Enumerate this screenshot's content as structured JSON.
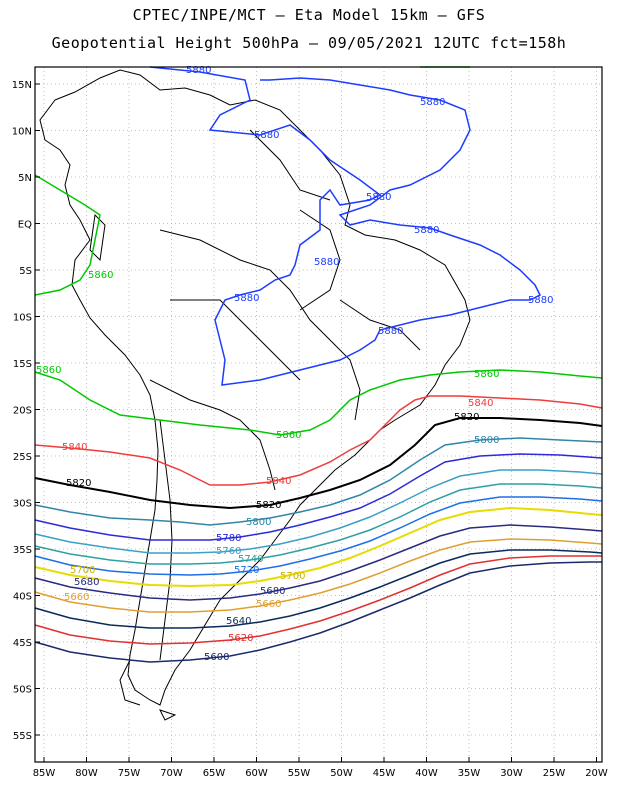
{
  "header": {
    "line1": "CPTEC/INPE/MCT –  Eta Model 15km – GFS",
    "line2": "Geopotential Height 500hPa – 09/05/2021 12UTC fct=158h"
  },
  "axes": {
    "lat_labels": [
      "15N",
      "10N",
      "5N",
      "EQ",
      "5S",
      "10S",
      "15S",
      "20S",
      "25S",
      "30S",
      "35S",
      "40S",
      "45S",
      "50S",
      "55S"
    ],
    "lon_labels": [
      "85W",
      "80W",
      "75W",
      "70W",
      "65W",
      "60W",
      "55W",
      "50W",
      "45W",
      "40W",
      "35W",
      "30W",
      "25W",
      "20W"
    ]
  },
  "colors": {
    "c5880": "#1e3cff",
    "c5860": "#00c800",
    "c5840": "#f03c3c",
    "c5820": "#000000",
    "c5800": "#2f86a6",
    "c5780": "#2a2ad8",
    "c5760": "#3aa0c8",
    "c5740": "#2fa0a0",
    "c5720": "#1e6ee6",
    "c5700": "#e6dc00",
    "c5680": "#2a2a80",
    "c5660": "#e0a030",
    "c5640": "#0a2a5a",
    "c5620": "#e03030",
    "c5600": "#1a2a6a"
  },
  "contour_labels": {
    "l5880_top": "5880",
    "l5880_a": "5880",
    "l5880_b": "5880",
    "l5880_c": "5880",
    "l5880_d": "5880",
    "l5880_e": "5880",
    "l5880_f": "5880",
    "l5880_g": "5880",
    "l5880_h": "5880",
    "l5880_i": "5880",
    "l5860_a": "5860",
    "l5860_b": "5860",
    "l5860_c": "5860",
    "l5860_d": "5860",
    "l5840_a": "5840",
    "l5840_b": "5840",
    "l5840_c": "5840",
    "l5820_a": "5820",
    "l5820_b": "5820",
    "l5820_c": "5820",
    "l5800_a": "5800",
    "l5800_b": "5800",
    "l5780": "5780",
    "l5760": "5760",
    "l5740": "5740",
    "l5720": "5720",
    "l5700_a": "5700",
    "l5700_b": "5700",
    "l5680_a": "5680",
    "l5680_b": "5680",
    "l5660_a": "5660",
    "l5660_b": "5660",
    "l5640": "5640",
    "l5620": "5620",
    "l5600": "5600"
  }
}
